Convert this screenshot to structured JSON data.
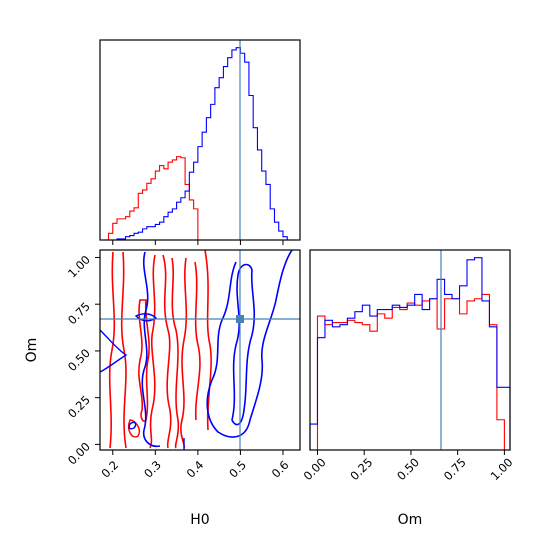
{
  "chart_data": {
    "type": "corner",
    "parameters": [
      "H0",
      "Om"
    ],
    "truth": {
      "H0": 0.5,
      "Om": 0.66
    },
    "truth_color": "#4682b4",
    "series": [
      {
        "color": "#ff0000"
      },
      {
        "color": "#0000ff"
      }
    ],
    "panels": [
      {
        "id": "hist-H0",
        "type": "step-histogram",
        "xlim": [
          0.17,
          0.64
        ],
        "xticks": [
          0.2,
          0.3,
          0.4,
          0.5,
          0.6
        ],
        "bin_edges": [
          0.18,
          0.19,
          0.2,
          0.21,
          0.22,
          0.23,
          0.24,
          0.25,
          0.26,
          0.27,
          0.28,
          0.29,
          0.3,
          0.31,
          0.32,
          0.33,
          0.34,
          0.35,
          0.36,
          0.37,
          0.38,
          0.39,
          0.4,
          0.41,
          0.42,
          0.43,
          0.44,
          0.45,
          0.46,
          0.47,
          0.48,
          0.49,
          0.5,
          0.51,
          0.52,
          0.53,
          0.54,
          0.55,
          0.56,
          0.57,
          0.58,
          0.59,
          0.6,
          0.61,
          0.62,
          0.63
        ],
        "red_counts": [
          0,
          6,
          15,
          19,
          19,
          21,
          26,
          29,
          42,
          45,
          51,
          55,
          62,
          67,
          64,
          70,
          72,
          75,
          74,
          50,
          36,
          28,
          0,
          0,
          0,
          0,
          0,
          0,
          0,
          0,
          0,
          0,
          0,
          0,
          0,
          0,
          0,
          0,
          0,
          0,
          0,
          0,
          0,
          0,
          0
        ],
        "blue_counts": [
          0,
          0,
          0,
          1,
          1,
          3,
          4,
          6,
          7,
          10,
          12,
          12,
          14,
          16,
          21,
          25,
          28,
          34,
          38,
          44,
          61,
          70,
          84,
          97,
          110,
          122,
          137,
          146,
          156,
          164,
          171,
          173,
          168,
          160,
          130,
          101,
          81,
          62,
          50,
          28,
          16,
          8,
          3,
          0,
          0
        ]
      },
      {
        "id": "hist-Om",
        "type": "step-histogram",
        "xlim": [
          -0.04,
          1.03
        ],
        "xticks": [
          0.0,
          0.25,
          0.5,
          0.75,
          1.0
        ],
        "xticklabels": [
          "0.00",
          "0.25",
          "0.50",
          "0.75",
          "1.00"
        ],
        "bin_edges": [
          -0.04,
          0.0,
          0.04,
          0.08,
          0.12,
          0.16,
          0.2,
          0.24,
          0.28,
          0.32,
          0.36,
          0.4,
          0.44,
          0.48,
          0.52,
          0.56,
          0.6,
          0.64,
          0.68,
          0.72,
          0.76,
          0.8,
          0.84,
          0.88,
          0.92,
          0.96,
          1.0,
          1.03
        ],
        "red_counts": [
          0,
          62,
          58,
          59,
          59,
          60,
          59,
          58,
          55,
          63,
          61,
          66,
          65,
          68,
          67,
          69,
          70,
          56,
          70,
          70,
          63,
          69,
          70,
          72,
          58,
          14,
          0
        ],
        "blue_counts": [
          12,
          52,
          60,
          57,
          58,
          61,
          64,
          67,
          62,
          65,
          65,
          67,
          66,
          67,
          72,
          65,
          70,
          79,
          72,
          70,
          76,
          88,
          89,
          69,
          57,
          29,
          29
        ]
      },
      {
        "id": "contour-H0-Om",
        "type": "contour",
        "xlim": [
          0.17,
          0.64
        ],
        "ylim": [
          -0.03,
          1.04
        ],
        "xticks": [
          0.2,
          0.3,
          0.4,
          0.5,
          0.6
        ],
        "yticks": [
          0.0,
          0.25,
          0.5,
          0.75,
          1.0
        ],
        "yticklabels": [
          "0.00",
          "0.25",
          "0.50",
          "0.75",
          "1.00"
        ],
        "red_bands": [
          [
            0.18,
            0.215,
            0.3
          ],
          [
            0.275,
            0.3,
            0.2
          ],
          [
            0.305,
            0.33,
            0.3
          ],
          [
            0.345,
            0.37,
            0.25
          ],
          [
            0.385,
            0.405,
            0.2
          ]
        ],
        "blue_regions": [
          [
            0.42,
            0.595,
            0.0,
            1.04
          ],
          [
            0.27,
            0.305,
            0.0,
            1.04
          ]
        ]
      }
    ],
    "xlabels": [
      "H0",
      "Om"
    ],
    "ylabel": "Om"
  }
}
